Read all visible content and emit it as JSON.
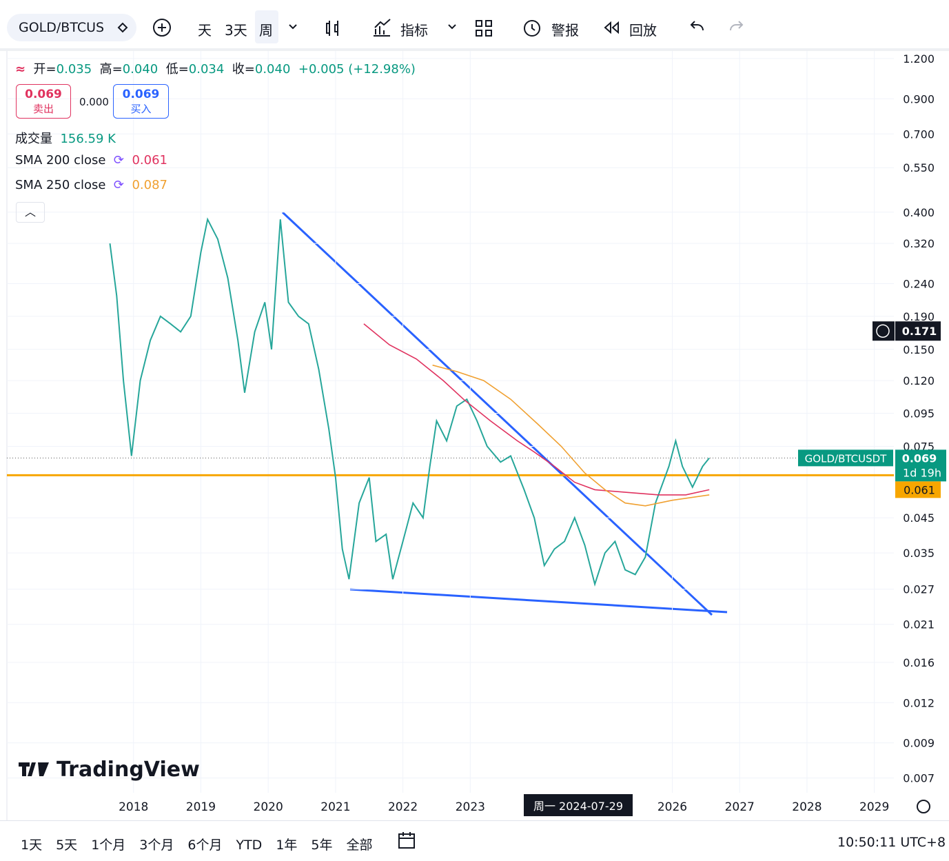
{
  "toolbar": {
    "symbol": "GOLD/BTCUS",
    "intervals": [
      "天",
      "3天",
      "周"
    ],
    "indicators": "指标",
    "alert": "警报",
    "replay": "回放"
  },
  "legend": {
    "open_label": "开=",
    "open": "0.035",
    "high_label": "高=",
    "high": "0.040",
    "low_label": "低=",
    "low": "0.034",
    "close_label": "收=",
    "close": "0.040",
    "change": "+0.005 (+12.98%)",
    "sell_price": "0.069",
    "sell": "卖出",
    "spread": "0.000",
    "buy_price": "0.069",
    "buy": "买入",
    "volume_label": "成交量",
    "volume": "156.59 K",
    "sma200_label": "SMA 200 close",
    "sma200": "0.061",
    "sma250_label": "SMA 250 close",
    "sma250": "0.087"
  },
  "chart_data": {
    "type": "line",
    "log_scale": true,
    "xlim": [
      2016.12,
      2029.29
    ],
    "xticks": [
      2018,
      2019,
      2020,
      2021,
      2022,
      2023,
      2026,
      2027,
      2028,
      2029
    ],
    "ylim": [
      0.0063,
      1.26
    ],
    "yticks": [
      {
        "value": 1.2,
        "label": "1.200"
      },
      {
        "value": 0.9,
        "label": "0.900"
      },
      {
        "value": 0.7,
        "label": "0.700"
      },
      {
        "value": 0.55,
        "label": "0.550"
      },
      {
        "value": 0.4,
        "label": "0.400"
      },
      {
        "value": 0.32,
        "label": "0.320"
      },
      {
        "value": 0.24,
        "label": "0.240"
      },
      {
        "value": 0.19,
        "label": "0.190"
      },
      {
        "value": 0.15,
        "label": "0.150"
      },
      {
        "value": 0.12,
        "label": "0.120"
      },
      0.095,
      0.075,
      0.045,
      0.035,
      0.027,
      0.021,
      0.016,
      0.012,
      0.009,
      0.007
    ],
    "series": [
      {
        "name": "GOLD/BTCUSDT",
        "color": "#26a69a",
        "x": [
          2017.65,
          2017.75,
          2017.85,
          2017.97,
          2018.1,
          2018.25,
          2018.4,
          2018.55,
          2018.7,
          2018.85,
          2019.0,
          2019.1,
          2019.25,
          2019.4,
          2019.55,
          2019.65,
          2019.8,
          2019.95,
          2020.05,
          2020.18,
          2020.3,
          2020.45,
          2020.6,
          2020.75,
          2020.9,
          2021.0,
          2021.1,
          2021.2,
          2021.35,
          2021.5,
          2021.6,
          2021.75,
          2021.85,
          2022.0,
          2022.15,
          2022.3,
          2022.4,
          2022.5,
          2022.65,
          2022.8,
          2022.95,
          2023.1,
          2023.25,
          2023.45,
          2023.6,
          2023.8,
          2023.95,
          2024.1,
          2024.25,
          2024.4,
          2024.55,
          2024.7,
          2024.85,
          2025.0,
          2025.15,
          2025.3,
          2025.45,
          2025.6,
          2025.75,
          2025.95,
          2026.05,
          2026.15,
          2026.3,
          2026.45,
          2026.55
        ],
        "values": [
          0.32,
          0.22,
          0.12,
          0.07,
          0.12,
          0.16,
          0.19,
          0.18,
          0.17,
          0.19,
          0.3,
          0.38,
          0.33,
          0.25,
          0.16,
          0.11,
          0.17,
          0.21,
          0.15,
          0.38,
          0.21,
          0.19,
          0.18,
          0.13,
          0.085,
          0.06,
          0.036,
          0.029,
          0.05,
          0.06,
          0.038,
          0.04,
          0.029,
          0.038,
          0.05,
          0.045,
          0.065,
          0.09,
          0.078,
          0.1,
          0.105,
          0.09,
          0.075,
          0.067,
          0.07,
          0.055,
          0.045,
          0.032,
          0.036,
          0.038,
          0.045,
          0.037,
          0.028,
          0.035,
          0.038,
          0.031,
          0.03,
          0.034,
          0.05,
          0.065,
          0.078,
          0.065,
          0.056,
          0.065,
          0.069
        ]
      },
      {
        "name": "SMA 200 close",
        "color": "#e0325f",
        "x": [
          2021.42,
          2021.8,
          2022.2,
          2022.6,
          2022.9,
          2023.3,
          2023.7,
          2023.95,
          2024.25,
          2024.55,
          2024.85,
          2025.3,
          2025.8,
          2026.2,
          2026.55
        ],
        "values": [
          0.18,
          0.155,
          0.14,
          0.12,
          0.105,
          0.09,
          0.078,
          0.072,
          0.065,
          0.058,
          0.055,
          0.054,
          0.053,
          0.053,
          0.055
        ]
      },
      {
        "name": "SMA 250 close",
        "color": "#f0a030",
        "x": [
          2022.44,
          2022.8,
          2023.2,
          2023.6,
          2024.0,
          2024.35,
          2024.7,
          2025.0,
          2025.3,
          2025.6,
          2026.0,
          2026.55
        ],
        "values": [
          0.134,
          0.128,
          0.12,
          0.105,
          0.088,
          0.075,
          0.062,
          0.055,
          0.05,
          0.049,
          0.051,
          0.053
        ]
      }
    ],
    "last_price": {
      "label": "GOLD/BTCUSDT",
      "value": 0.069,
      "countdown": "1d 19h",
      "color": "#089981"
    },
    "level": {
      "value": 0.061,
      "color": "#f7a600"
    },
    "crosshair": {
      "value": 0.171,
      "x_label": "周一 2024-07-29"
    }
  },
  "footer": {
    "ranges": [
      "1天",
      "5天",
      "1个月",
      "3个月",
      "6个月",
      "YTD",
      "1年",
      "5年",
      "全部"
    ],
    "clock": "10:50:11 UTC+8"
  },
  "logo": "TradingView"
}
